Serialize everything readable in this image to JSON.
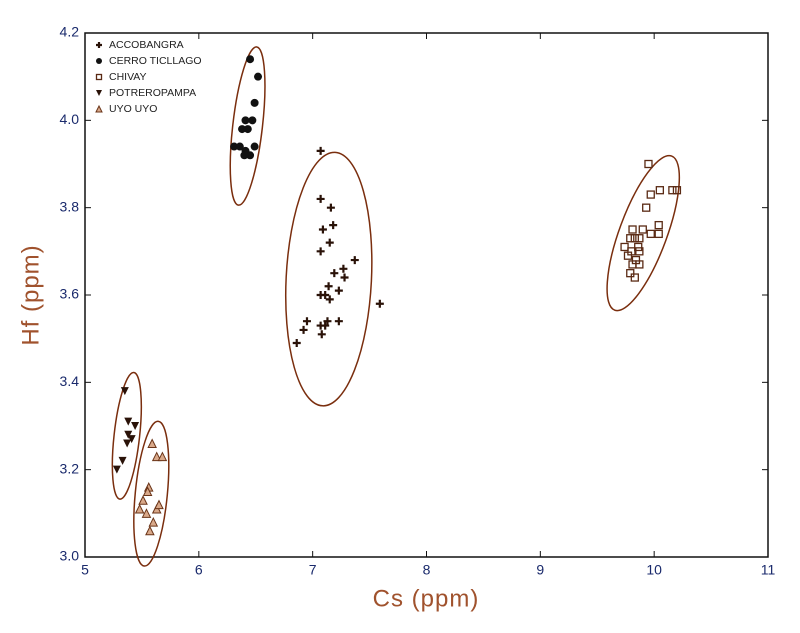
{
  "chart_data": {
    "type": "scatter",
    "x_label": "Cs (ppm)",
    "y_label": "Hf (ppm)",
    "xlim": [
      5,
      11
    ],
    "xticks": [
      5,
      6,
      7,
      8,
      9,
      10,
      11
    ],
    "ylim": [
      3.0,
      4.2
    ],
    "yticks": [
      {
        "value": 3.0,
        "label": "3.0"
      },
      3.2,
      3.4,
      3.6,
      3.8,
      {
        "value": 4.0,
        "label": "4.0"
      },
      4.2
    ],
    "legend": "upper left",
    "ellipses": true,
    "ellipse_color": "#7a2e0e",
    "series": [
      {
        "name": "ACCOBANGRA",
        "marker": "plus",
        "color": "#2a1208",
        "x": [
          7.07,
          7.07,
          7.16,
          7.09,
          7.18,
          7.07,
          7.15,
          7.37,
          7.27,
          7.19,
          7.28,
          7.14,
          7.23,
          7.11,
          7.15,
          7.07,
          7.59,
          6.95,
          7.07,
          7.13,
          7.23,
          7.08,
          6.92,
          6.86,
          7.11
        ],
        "values": [
          3.93,
          3.82,
          3.8,
          3.75,
          3.76,
          3.7,
          3.72,
          3.68,
          3.66,
          3.65,
          3.64,
          3.62,
          3.61,
          3.6,
          3.59,
          3.6,
          3.58,
          3.54,
          3.53,
          3.54,
          3.54,
          3.51,
          3.52,
          3.49,
          3.53
        ]
      },
      {
        "name": "CERRO TICLLAGO",
        "marker": "circle",
        "color": "#111111",
        "x": [
          6.45,
          6.52,
          6.49,
          6.47,
          6.41,
          6.38,
          6.43,
          6.31,
          6.36,
          6.41,
          6.45,
          6.49,
          6.4
        ],
        "values": [
          4.14,
          4.1,
          4.04,
          4.0,
          4.0,
          3.98,
          3.98,
          3.94,
          3.94,
          3.93,
          3.92,
          3.94,
          3.92
        ]
      },
      {
        "name": "CHIVAY",
        "marker": "square",
        "color": "#5a2a14",
        "x": [
          9.95,
          10.05,
          10.16,
          10.2,
          9.97,
          9.93,
          10.04,
          9.9,
          9.97,
          10.04,
          9.83,
          9.79,
          9.87,
          9.74,
          9.8,
          9.86,
          9.77,
          9.84,
          9.87,
          9.81,
          9.79,
          9.83,
          9.87,
          9.81
        ],
        "values": [
          3.9,
          3.84,
          3.84,
          3.84,
          3.83,
          3.8,
          3.76,
          3.75,
          3.74,
          3.74,
          3.73,
          3.73,
          3.73,
          3.71,
          3.7,
          3.71,
          3.69,
          3.68,
          3.67,
          3.67,
          3.65,
          3.64,
          3.7,
          3.75
        ]
      },
      {
        "name": "POTREROPAMPA",
        "marker": "triangle-down",
        "color": "#2a1208",
        "x": [
          5.35,
          5.38,
          5.44,
          5.38,
          5.41,
          5.37,
          5.28,
          5.33
        ],
        "values": [
          3.38,
          3.31,
          3.3,
          3.28,
          3.27,
          3.26,
          3.2,
          3.22
        ]
      },
      {
        "name": "UYO UYO",
        "marker": "triangle-up",
        "color": "#6a3418",
        "x": [
          5.59,
          5.63,
          5.68,
          5.56,
          5.55,
          5.51,
          5.48,
          5.54,
          5.63,
          5.6,
          5.57,
          5.65
        ],
        "values": [
          3.26,
          3.23,
          3.23,
          3.16,
          3.15,
          3.13,
          3.11,
          3.1,
          3.11,
          3.08,
          3.06,
          3.12
        ]
      }
    ]
  }
}
